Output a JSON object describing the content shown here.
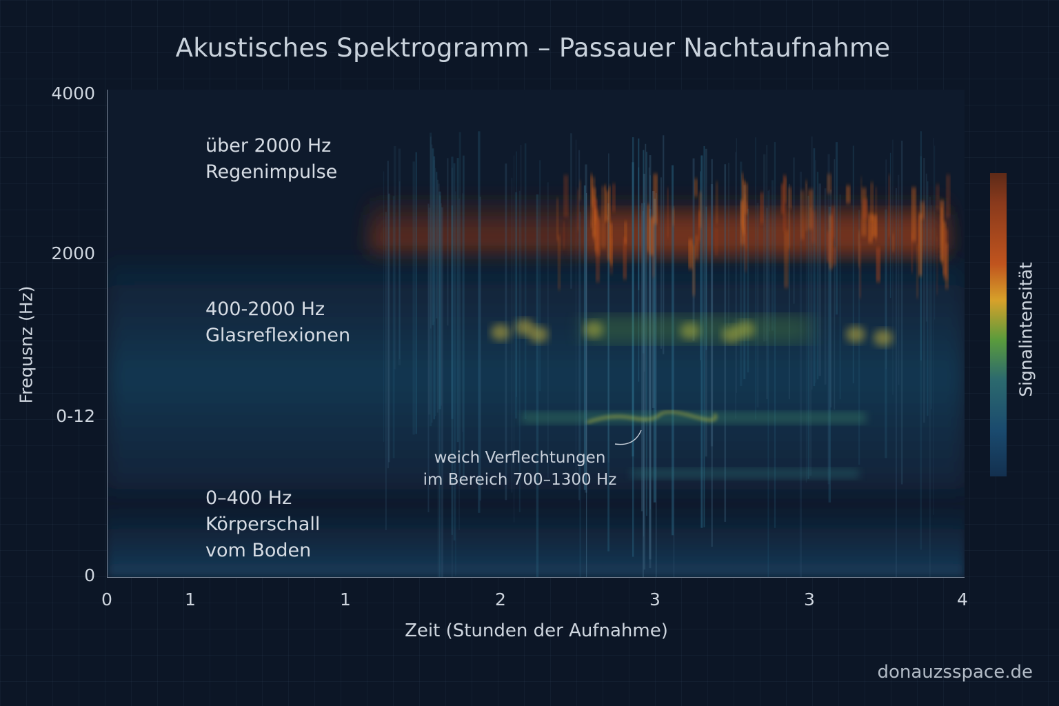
{
  "chart_data": {
    "type": "heatmap",
    "title": "Akustisches Spektrogramm – Passauer Nachtaufnahme",
    "xlabel": "Zeit (Stunden der Aufnahme)",
    "ylabel": "Frequsnz (Hz)",
    "colorbar_label": "Signalintensität",
    "x_ticks": [
      "0",
      "1",
      "1",
      "2",
      "3",
      "3",
      "4"
    ],
    "y_ticks": [
      "4000",
      "2000",
      "0-12",
      "0"
    ],
    "xlim": [
      0,
      4
    ],
    "ylim": [
      0,
      4000
    ],
    "grid": false,
    "colormap": [
      "#13304f",
      "#1a4a6e",
      "#2c6a6e",
      "#5a9b3c",
      "#d7a12a",
      "#c0541e",
      "#8a3a1c",
      "#5d2a18"
    ],
    "bands": [
      {
        "range": "über 2000 Hz",
        "name": "Regenimpulse"
      },
      {
        "range": "400-2000 Hz",
        "name": "Glasreflexionen"
      },
      {
        "range": "0–400 Hz",
        "name": "Körperschall",
        "name2": "vom Boden"
      }
    ],
    "annotation": {
      "line1": "weich Verflechtungen",
      "line2": "im Bereich 700–1300 Hz"
    }
  },
  "watermark": "donauzsspace.de"
}
